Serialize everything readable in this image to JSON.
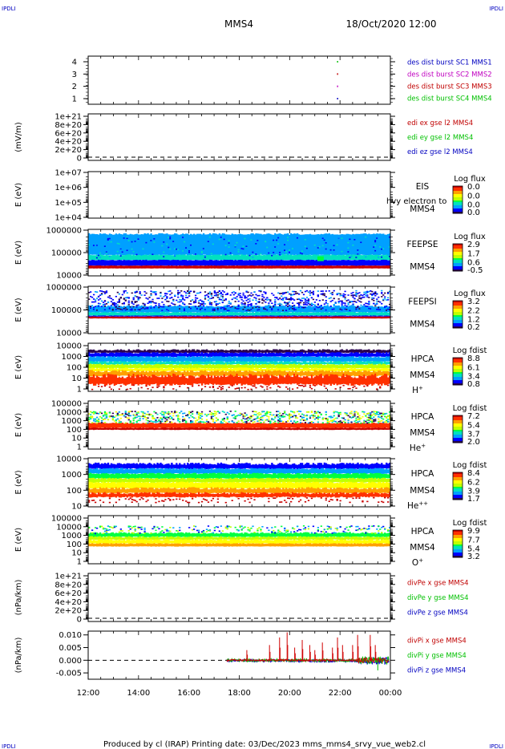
{
  "header": {
    "corner_left": "IPDLI",
    "corner_right": "IPDLI",
    "spacecraft": "MMS4",
    "datetime": "18/Oct/2020 12:00"
  },
  "footer": {
    "text": "Produced by cl (IRAP)   Printing date: 03/Dec/2023   mms_mms4_srvy_vue_web2.cl",
    "corner_left": "IPDLI",
    "corner_right": "IPDLI"
  },
  "colors": {
    "spectrum": [
      "#2a0050",
      "#0000ff",
      "#00a0ff",
      "#00e0c0",
      "#00ff40",
      "#c0ff00",
      "#ffff00",
      "#ffa000",
      "#ff3000",
      "#c80000"
    ]
  },
  "chart_data": [
    {
      "id": "p1",
      "type": "scatter",
      "xlabel": "",
      "ylabel": "",
      "yticks": [
        "4",
        "3",
        "2",
        "1"
      ],
      "ylim": [
        0.6,
        4.4
      ],
      "legend": [
        {
          "label": "des dist burst SC1 MMS1",
          "color": "#0000c0"
        },
        {
          "label": "des dist burst SC2 MMS2",
          "color": "#c000c0"
        },
        {
          "label": "des dist burst SC3 MMS3",
          "color": "#c00000"
        },
        {
          "label": "des dist burst SC4 MMS4",
          "color": "#00c000"
        }
      ],
      "points": [
        {
          "x": 21.9,
          "y": 4,
          "color": "#00c000"
        },
        {
          "x": 21.9,
          "y": 3,
          "color": "#c00000"
        },
        {
          "x": 21.9,
          "y": 2,
          "color": "#c000c0"
        },
        {
          "x": 21.9,
          "y": 1,
          "color": "#0000c0"
        }
      ]
    },
    {
      "id": "p2",
      "type": "line",
      "ylabel": "(mV/m)",
      "yticks": [
        "1e+21",
        "8e+20",
        "6e+20",
        "4e+20",
        "2e+20",
        "0"
      ],
      "legend": [
        {
          "label": "edi ex gse l2 MMS4",
          "color": "#c00000"
        },
        {
          "label": "edi ey gse l2 MMS4",
          "color": "#00c000"
        },
        {
          "label": "edi ez gse l2 MMS4",
          "color": "#0000c0"
        }
      ]
    },
    {
      "id": "p3",
      "type": "heatmap",
      "ylabel": "E (eV)",
      "yticks": [
        "1e+07",
        "1e+06",
        "1e+05",
        "1e+04"
      ],
      "instrument": [
        "EIS",
        "MMS4"
      ],
      "overlay_text": "hvy electron to",
      "colorbar": {
        "title": "Log flux",
        "ticks": [
          "0.0",
          "0.0",
          "0.0",
          "0.0"
        ]
      }
    },
    {
      "id": "p4",
      "type": "heatmap",
      "ylabel": "E (eV)",
      "yticks": [
        "1000000",
        "100000",
        "10000"
      ],
      "instrument": [
        "FEEPSE",
        "MMS4"
      ],
      "colorbar": {
        "title": "Log flux",
        "ticks": [
          "2.9",
          "1.7",
          "0.6",
          "-0.5"
        ]
      }
    },
    {
      "id": "p5",
      "type": "heatmap",
      "ylabel": "E (eV)",
      "yticks": [
        "1000000",
        "100000",
        "10000"
      ],
      "instrument": [
        "FEEPSI",
        "MMS4"
      ],
      "colorbar": {
        "title": "Log flux",
        "ticks": [
          "3.2",
          "2.2",
          "1.2",
          "0.2"
        ]
      }
    },
    {
      "id": "p6",
      "type": "heatmap",
      "ylabel": "E (eV)",
      "yticks": [
        "10000",
        "1000",
        "100",
        "10",
        "1"
      ],
      "instrument": [
        "HPCA",
        "MMS4"
      ],
      "species": "H",
      "charge": "+",
      "colorbar": {
        "title": "Log fdist",
        "ticks": [
          "8.8",
          "6.1",
          "3.4",
          "0.8"
        ]
      }
    },
    {
      "id": "p7",
      "type": "heatmap",
      "ylabel": "E (eV)",
      "yticks": [
        "100000",
        "10000",
        "1000",
        "100",
        "10",
        "1"
      ],
      "instrument": [
        "HPCA",
        "MMS4"
      ],
      "species": "He",
      "charge": "+",
      "colorbar": {
        "title": "Log fdist",
        "ticks": [
          "7.2",
          "5.4",
          "3.7",
          "2.0"
        ]
      }
    },
    {
      "id": "p8",
      "type": "heatmap",
      "ylabel": "E (eV)",
      "yticks": [
        "10000",
        "1000",
        "100",
        "10"
      ],
      "instrument": [
        "HPCA",
        "MMS4"
      ],
      "species": "He",
      "charge": "++",
      "colorbar": {
        "title": "Log fdist",
        "ticks": [
          "8.4",
          "6.2",
          "3.9",
          "1.7"
        ]
      }
    },
    {
      "id": "p9",
      "type": "heatmap",
      "ylabel": "E (eV)",
      "yticks": [
        "100000",
        "10000",
        "1000",
        "100",
        "10",
        "1"
      ],
      "instrument": [
        "HPCA",
        "MMS4"
      ],
      "species": "O",
      "charge": "+",
      "colorbar": {
        "title": "Log fdist",
        "ticks": [
          "9.9",
          "7.7",
          "5.4",
          "3.2"
        ]
      }
    },
    {
      "id": "p10",
      "type": "line",
      "ylabel": "(nPa/km)",
      "yticks": [
        "1e+21",
        "8e+20",
        "6e+20",
        "4e+20",
        "2e+20",
        "0"
      ],
      "legend": [
        {
          "label": "divPe x gse MMS4",
          "color": "#c00000"
        },
        {
          "label": "divPe y gse MMS4",
          "color": "#00c000"
        },
        {
          "label": "divPe z gse MMS4",
          "color": "#0000c0"
        }
      ]
    },
    {
      "id": "p11",
      "type": "line",
      "ylabel": "(nPa/km)",
      "yticks": [
        "0.010",
        "0.005",
        "0.000",
        "-0.005"
      ],
      "ylim": [
        -0.0075,
        0.0115
      ],
      "legend": [
        {
          "label": "divPi x gse MMS4",
          "color": "#c00000"
        },
        {
          "label": "divPi y gse MMS4",
          "color": "#00c000"
        },
        {
          "label": "divPi z gse MMS4",
          "color": "#0000c0"
        }
      ],
      "data_start": "17:30",
      "spikes": [
        [
          18.3,
          0.004
        ],
        [
          19.2,
          0.006
        ],
        [
          19.6,
          0.009
        ],
        [
          19.9,
          0.011
        ],
        [
          20.2,
          0.005
        ],
        [
          20.5,
          0.008
        ],
        [
          20.8,
          0.006
        ],
        [
          21.0,
          0.004
        ],
        [
          21.3,
          0.007
        ],
        [
          21.7,
          0.005
        ],
        [
          21.9,
          0.009
        ],
        [
          22.1,
          0.006
        ],
        [
          22.5,
          0.006
        ],
        [
          22.7,
          0.01
        ],
        [
          23.2,
          0.01
        ],
        [
          23.4,
          0.006
        ]
      ]
    }
  ],
  "time_axis": {
    "ticks": [
      "12:00",
      "14:00",
      "16:00",
      "18:00",
      "20:00",
      "22:00",
      "00:00"
    ]
  }
}
